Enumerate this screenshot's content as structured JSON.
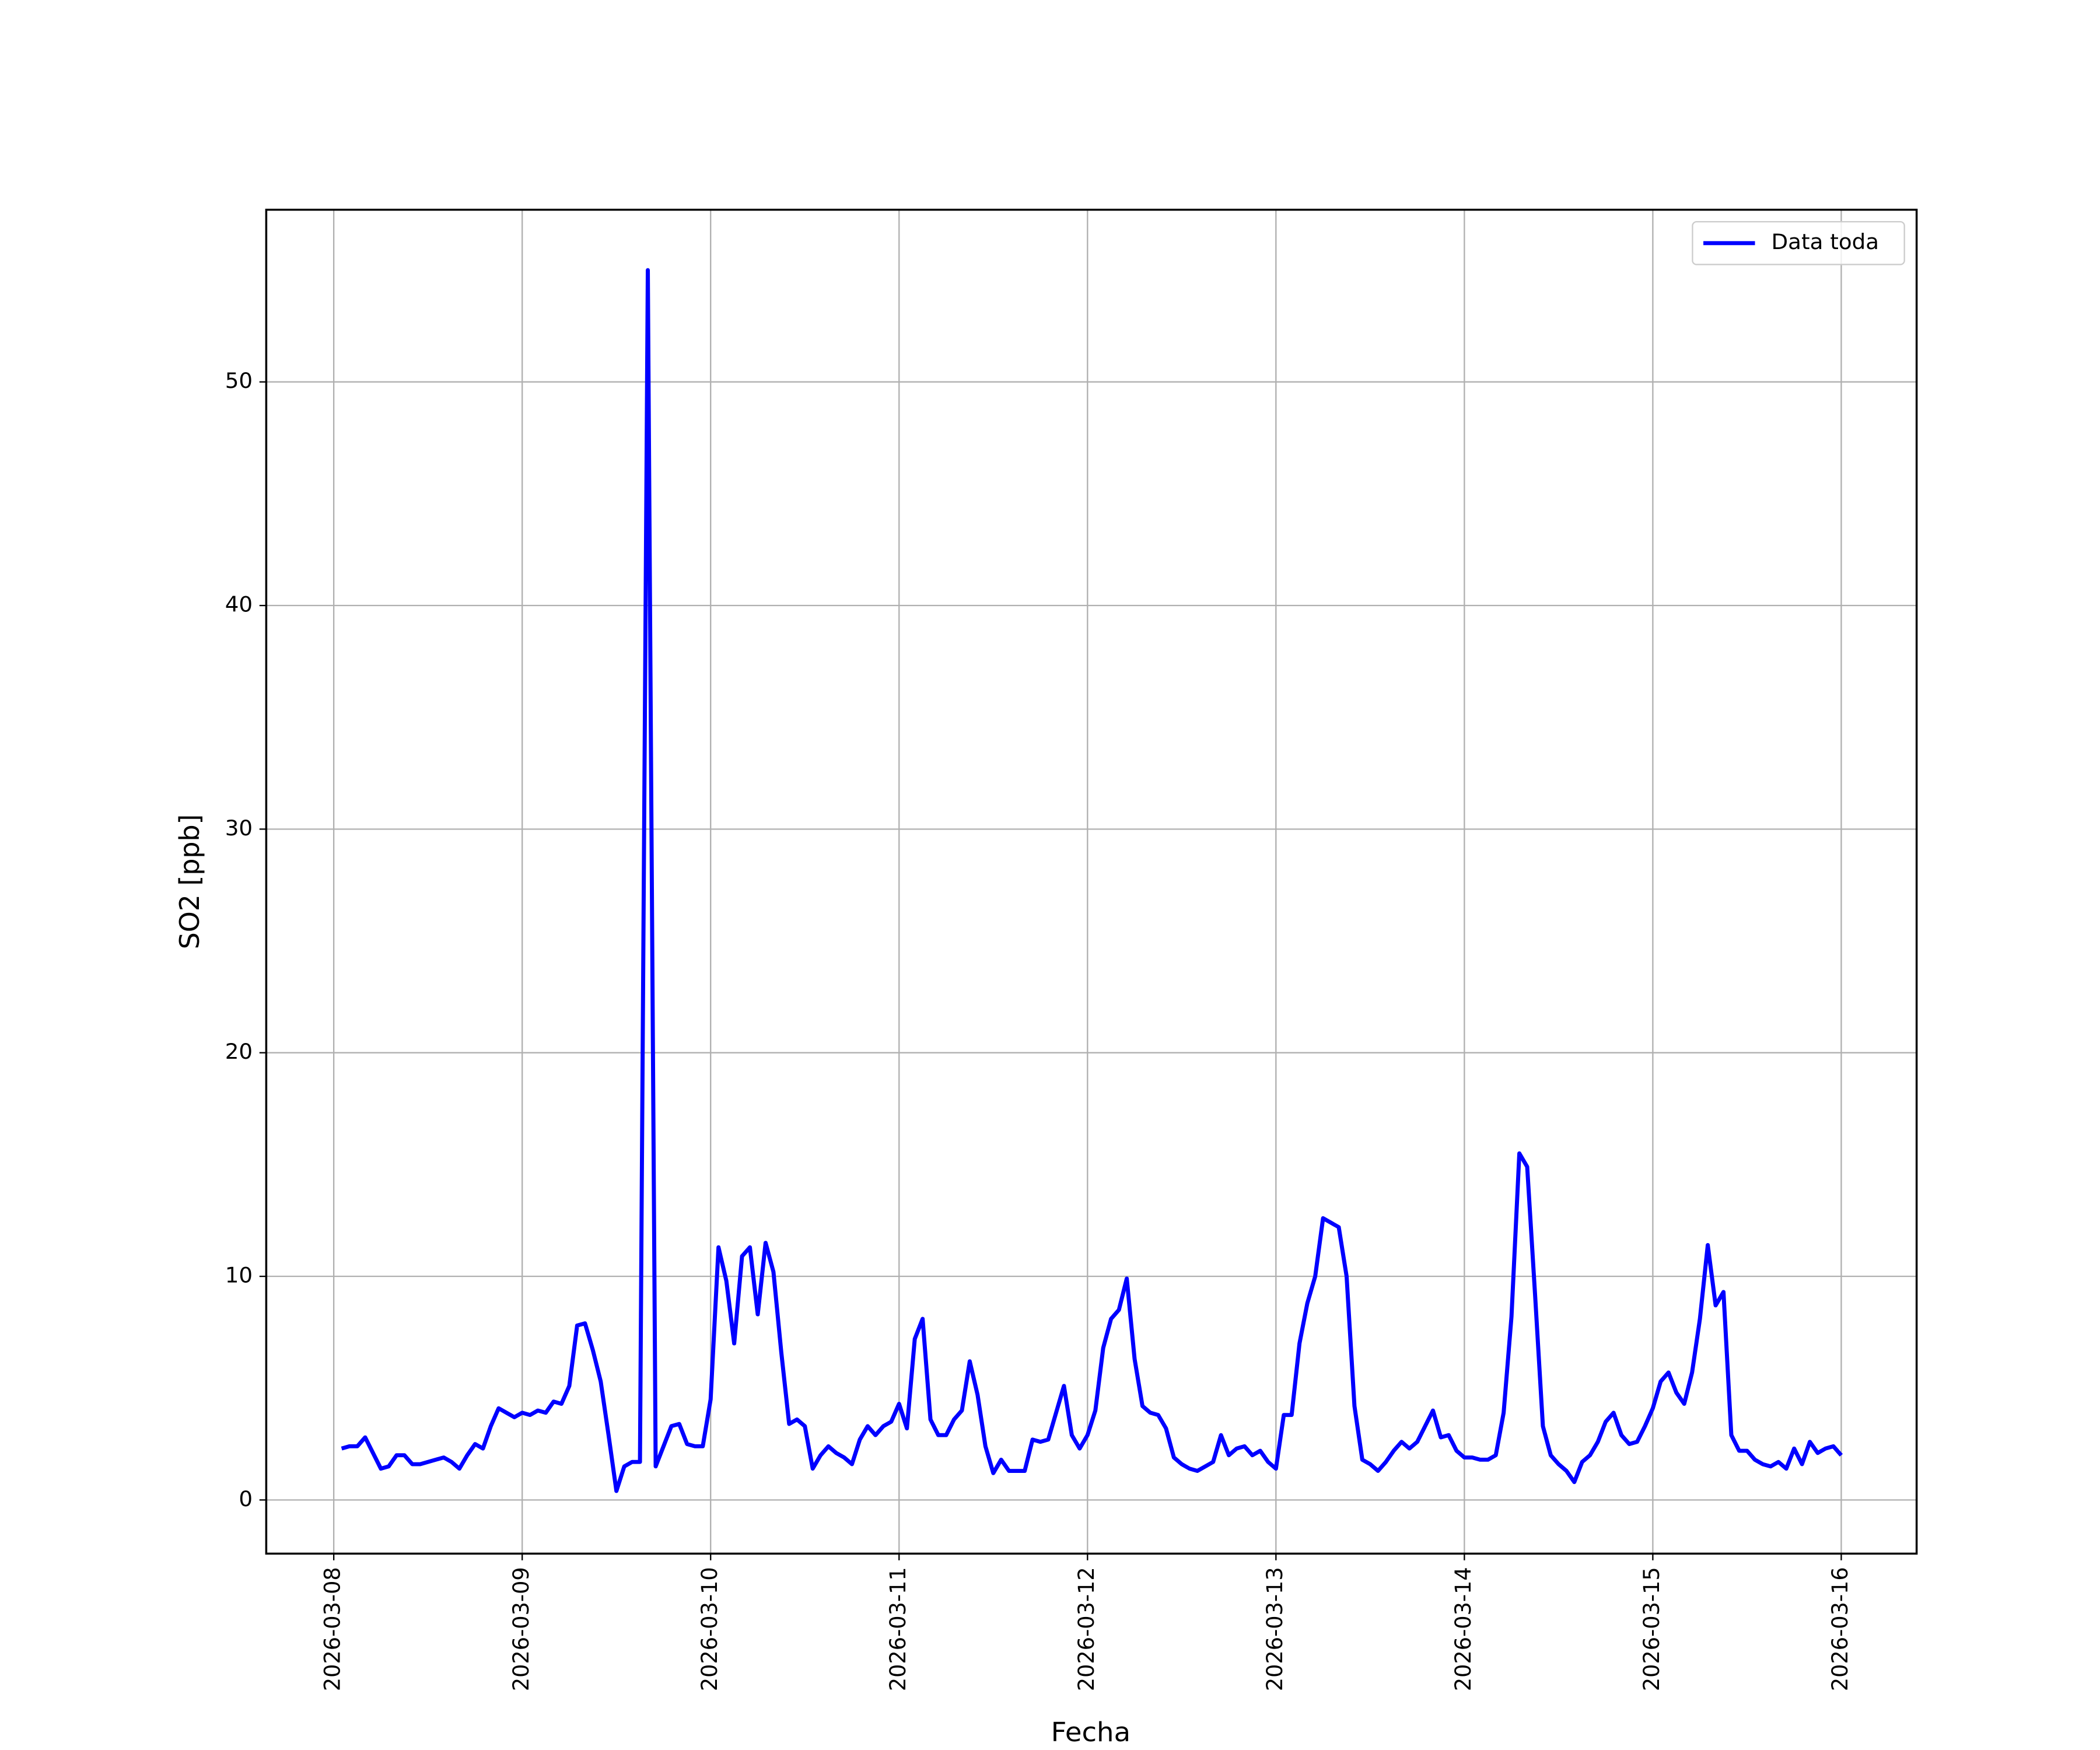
{
  "chart_data": {
    "type": "line",
    "x_label": "Fecha",
    "y_label": "SO2 [ppb]",
    "x": [
      1,
      2,
      3,
      4,
      5,
      6,
      7,
      8,
      9,
      10,
      11,
      12,
      13,
      14,
      15,
      16,
      17,
      18,
      19,
      20,
      21,
      22,
      23,
      24,
      25,
      26,
      27,
      28,
      29,
      30,
      31,
      32,
      33,
      34,
      35,
      36,
      37,
      38,
      39,
      40,
      41,
      42,
      43,
      44,
      45,
      46,
      47,
      48,
      49,
      50,
      51,
      52,
      53,
      54,
      55,
      56,
      57,
      58,
      59,
      60,
      61,
      62,
      63,
      64,
      65,
      66,
      67,
      68,
      69,
      70,
      71,
      72,
      73,
      74,
      75,
      76,
      77,
      78,
      79,
      80,
      81,
      82,
      83,
      84,
      85,
      86,
      87,
      88,
      89,
      90,
      91,
      92,
      93,
      94,
      95,
      96,
      97,
      98,
      99,
      100,
      101,
      102,
      103,
      104,
      105,
      106,
      107,
      108,
      109,
      110,
      111,
      112,
      113,
      114,
      115,
      116,
      117,
      118,
      119,
      120,
      121,
      122,
      123,
      124,
      125,
      126,
      127,
      128,
      129,
      130,
      131,
      132,
      133,
      134,
      135,
      136,
      137,
      138,
      139,
      140,
      141,
      142,
      143,
      144,
      145,
      146,
      147,
      148,
      149,
      150,
      151,
      152,
      153,
      154,
      155,
      156,
      157,
      158,
      159,
      160,
      161,
      162,
      163,
      164,
      165,
      166,
      167,
      168,
      169,
      170,
      171,
      172,
      173,
      174,
      175,
      176,
      177,
      178,
      179,
      180,
      181,
      182,
      183,
      184,
      185,
      186,
      187,
      188,
      189,
      190,
      191,
      192
    ],
    "series": [
      {
        "name": "Data toda",
        "color": "#0000ff",
        "values": [
          2.3,
          2.4,
          2.4,
          2.8,
          2.1,
          1.4,
          1.5,
          2.0,
          2.0,
          1.6,
          1.6,
          1.7,
          1.8,
          1.9,
          1.7,
          1.4,
          2.0,
          2.5,
          2.3,
          3.3,
          4.1,
          3.9,
          3.7,
          3.9,
          3.8,
          4.0,
          3.9,
          4.4,
          4.3,
          5.1,
          7.8,
          7.9,
          6.7,
          5.3,
          2.9,
          0.4,
          1.5,
          1.7,
          1.7,
          55.0,
          1.5,
          2.4,
          3.3,
          3.4,
          2.5,
          2.4,
          2.4,
          4.5,
          11.3,
          9.8,
          7.0,
          10.9,
          11.3,
          8.3,
          11.5,
          10.2,
          6.6,
          3.4,
          3.6,
          3.3,
          1.4,
          2.0,
          2.4,
          2.1,
          1.9,
          1.6,
          2.7,
          3.3,
          2.9,
          3.3,
          3.5,
          4.3,
          3.2,
          7.2,
          8.1,
          3.6,
          2.9,
          2.9,
          3.6,
          4.0,
          6.2,
          4.7,
          2.4,
          1.2,
          1.8,
          1.3,
          1.3,
          1.3,
          2.7,
          2.6,
          2.7,
          3.9,
          5.1,
          2.9,
          2.3,
          2.9,
          4.0,
          6.8,
          8.1,
          8.5,
          9.9,
          6.3,
          4.2,
          3.9,
          3.8,
          3.2,
          1.9,
          1.6,
          1.4,
          1.3,
          1.5,
          1.7,
          2.9,
          2.0,
          2.3,
          2.4,
          2.0,
          2.2,
          1.7,
          1.4,
          3.8,
          3.8,
          7.0,
          8.8,
          10.0,
          12.6,
          12.4,
          12.2,
          10.0,
          4.2,
          1.8,
          1.6,
          1.3,
          1.7,
          2.2,
          2.6,
          2.3,
          2.6,
          3.3,
          4.0,
          2.8,
          2.9,
          2.2,
          1.9,
          1.9,
          1.8,
          1.8,
          2.0,
          3.9,
          8.2,
          15.5,
          14.9,
          9.2,
          3.3,
          2.0,
          1.6,
          1.3,
          0.8,
          1.7,
          2.0,
          2.6,
          3.5,
          3.9,
          2.9,
          2.5,
          2.6,
          3.3,
          4.1,
          5.3,
          5.7,
          4.8,
          4.3,
          5.7,
          8.1,
          11.4,
          8.7,
          9.3,
          2.9,
          2.2,
          2.2,
          1.8,
          1.6,
          1.5,
          1.7,
          1.4,
          2.3,
          1.6,
          2.6,
          2.1,
          2.3,
          2.4,
          2.0
        ]
      }
    ],
    "xlim": [
      -8.6,
      201.6
    ],
    "xticks": [
      {
        "value": 0,
        "label": "2026-03-08"
      },
      {
        "value": 24,
        "label": "2026-03-09"
      },
      {
        "value": 48,
        "label": "2026-03-10"
      },
      {
        "value": 72,
        "label": "2026-03-11"
      },
      {
        "value": 96,
        "label": "2026-03-12"
      },
      {
        "value": 120,
        "label": "2026-03-13"
      },
      {
        "value": 144,
        "label": "2026-03-14"
      },
      {
        "value": 168,
        "label": "2026-03-15"
      },
      {
        "value": 192,
        "label": "2026-03-16"
      }
    ],
    "ylim": [
      -2.4,
      57.7
    ],
    "yticks": [
      0,
      10,
      20,
      30,
      40,
      50
    ],
    "grid": true,
    "legend": "upper right"
  }
}
